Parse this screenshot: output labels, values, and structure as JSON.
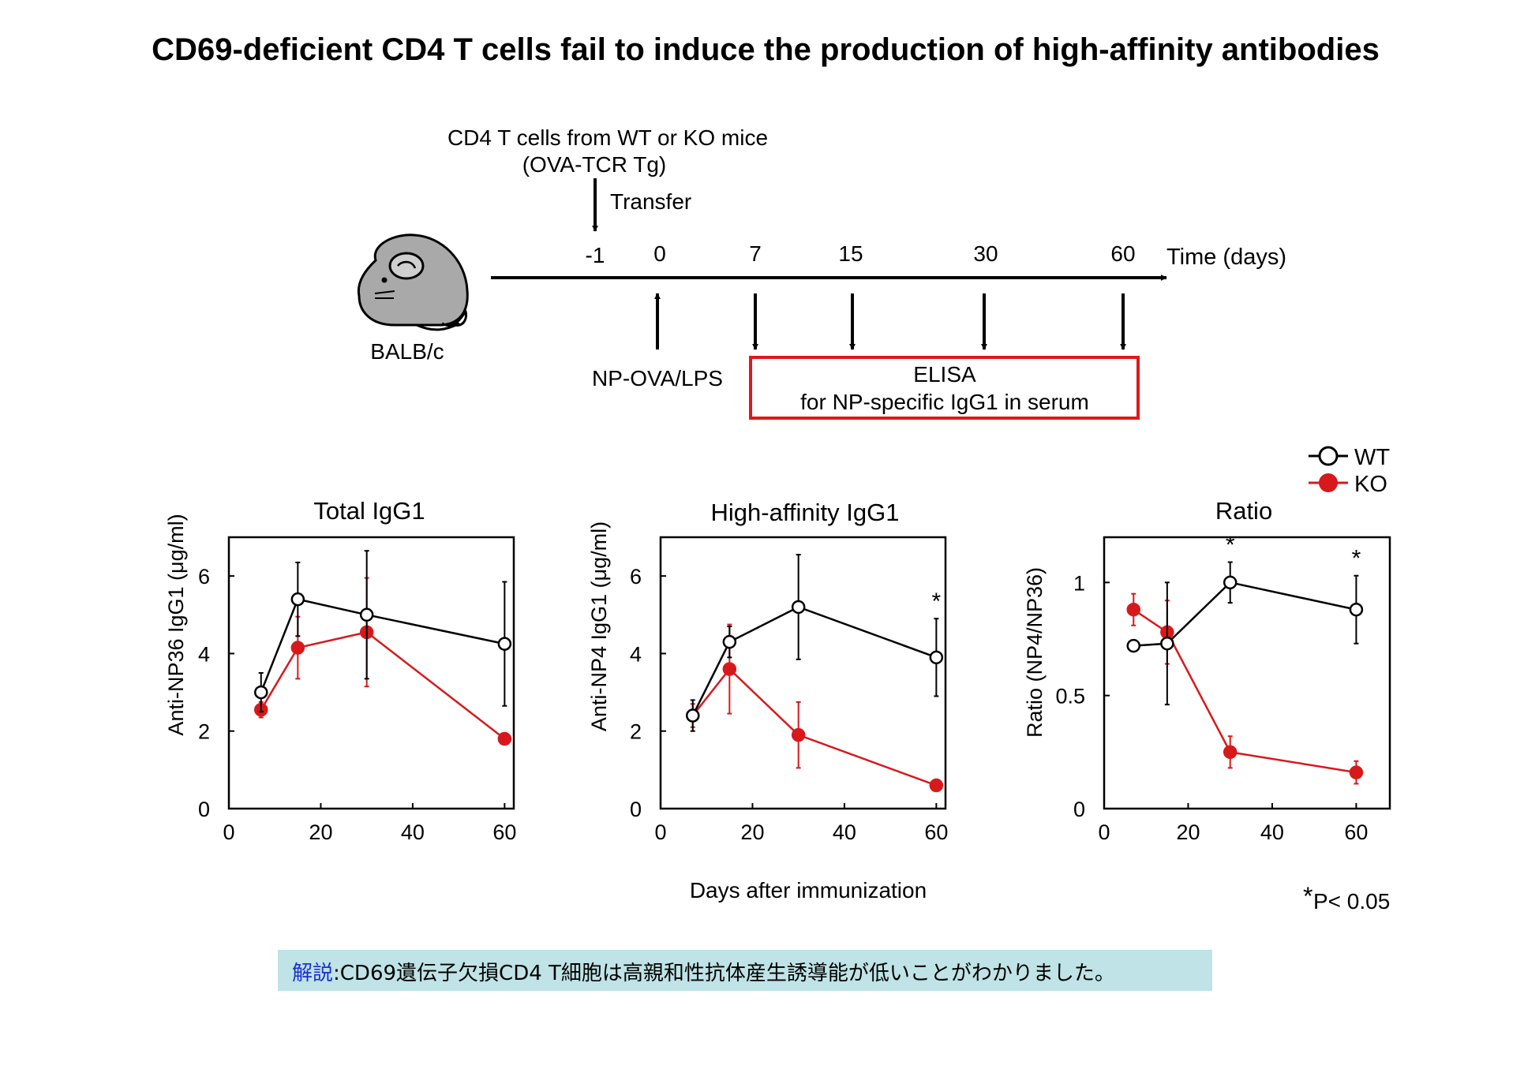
{
  "title": "CD69-deficient CD4 T cells fail to induce the production of high-affinity antibodies",
  "schematic": {
    "transfer_header_line1": "CD4 T cells from WT or KO mice",
    "transfer_header_line2": "(OVA-TCR Tg)",
    "transfer_label": "Transfer",
    "timeline_ticks": [
      "-1",
      "0",
      "7",
      "15",
      "30",
      "60"
    ],
    "time_axis_label": "Time (days)",
    "mouse_label": "BALB/c",
    "immunization_label": "NP-OVA/LPS",
    "elisa_line1": "ELISA",
    "elisa_line2": "for NP-specific IgG1 in serum",
    "elisa_box_color": "#e0181b",
    "mouse_icon": "mouse-icon"
  },
  "legend": {
    "wt": "WT",
    "ko": "KO"
  },
  "shared_xlabel": "Days after immunization",
  "significance_note": "P< 0.05",
  "significance_star": "*",
  "footer": {
    "label": "解説",
    "separator": ":",
    "text": "CD69遺伝子欠損CD4 T細胞は高親和性抗体産生誘導能が低いことがわかりました。"
  },
  "colors": {
    "wt": "#000000",
    "ko": "#d7191c",
    "footer_bg": "#bfe3e6",
    "footer_label": "#1a2fd1"
  },
  "chart_data": [
    {
      "type": "line",
      "title": "Total IgG1",
      "ylabel": "Anti-NP36 IgG1 (μg/ml)",
      "xlabel": "",
      "xlim": [
        0,
        62
      ],
      "ylim": [
        0,
        7
      ],
      "xticks": [
        0,
        20,
        40,
        60
      ],
      "yticks": [
        0,
        2,
        4,
        6
      ],
      "significant_x": [],
      "series": [
        {
          "name": "WT",
          "x": [
            7,
            15,
            30,
            60
          ],
          "y": [
            3.0,
            5.4,
            5.0,
            4.25
          ],
          "err": [
            0.5,
            0.95,
            1.65,
            1.6
          ]
        },
        {
          "name": "KO",
          "x": [
            7,
            15,
            30,
            60
          ],
          "y": [
            2.55,
            4.15,
            4.55,
            1.8
          ],
          "err": [
            0.2,
            0.8,
            1.4,
            0.05
          ]
        }
      ]
    },
    {
      "type": "line",
      "title": "High-affinity IgG1",
      "ylabel": "Anti-NP4 IgG1 (μg/ml)",
      "xlabel": "",
      "xlim": [
        0,
        62
      ],
      "ylim": [
        0,
        7
      ],
      "xticks": [
        0,
        20,
        40,
        60
      ],
      "yticks": [
        0,
        2,
        4,
        6
      ],
      "significant_x": [
        60
      ],
      "series": [
        {
          "name": "WT",
          "x": [
            7,
            15,
            30,
            60
          ],
          "y": [
            2.4,
            4.3,
            5.2,
            3.9
          ],
          "err": [
            0.4,
            0.4,
            1.35,
            1.0
          ]
        },
        {
          "name": "KO",
          "x": [
            7,
            15,
            30,
            60
          ],
          "y": [
            2.4,
            3.6,
            1.9,
            0.6
          ],
          "err": [
            0.3,
            1.15,
            0.85,
            0.05
          ]
        }
      ]
    },
    {
      "type": "line",
      "title": "Ratio",
      "ylabel": "Ratio (NP4/NP36)",
      "xlabel": "",
      "xlim": [
        0,
        68
      ],
      "ylim": [
        0,
        1.2
      ],
      "xticks": [
        0,
        20,
        40,
        60
      ],
      "yticks": [
        0,
        0.5,
        1
      ],
      "significant_x": [
        30,
        60
      ],
      "series": [
        {
          "name": "WT",
          "x": [
            7,
            15,
            30,
            60
          ],
          "y": [
            0.72,
            0.73,
            1.0,
            0.88
          ],
          "err": [
            0.0,
            0.27,
            0.09,
            0.15
          ]
        },
        {
          "name": "KO",
          "x": [
            7,
            15,
            30,
            60
          ],
          "y": [
            0.88,
            0.78,
            0.25,
            0.16
          ],
          "err": [
            0.07,
            0.14,
            0.07,
            0.05
          ]
        }
      ]
    }
  ]
}
